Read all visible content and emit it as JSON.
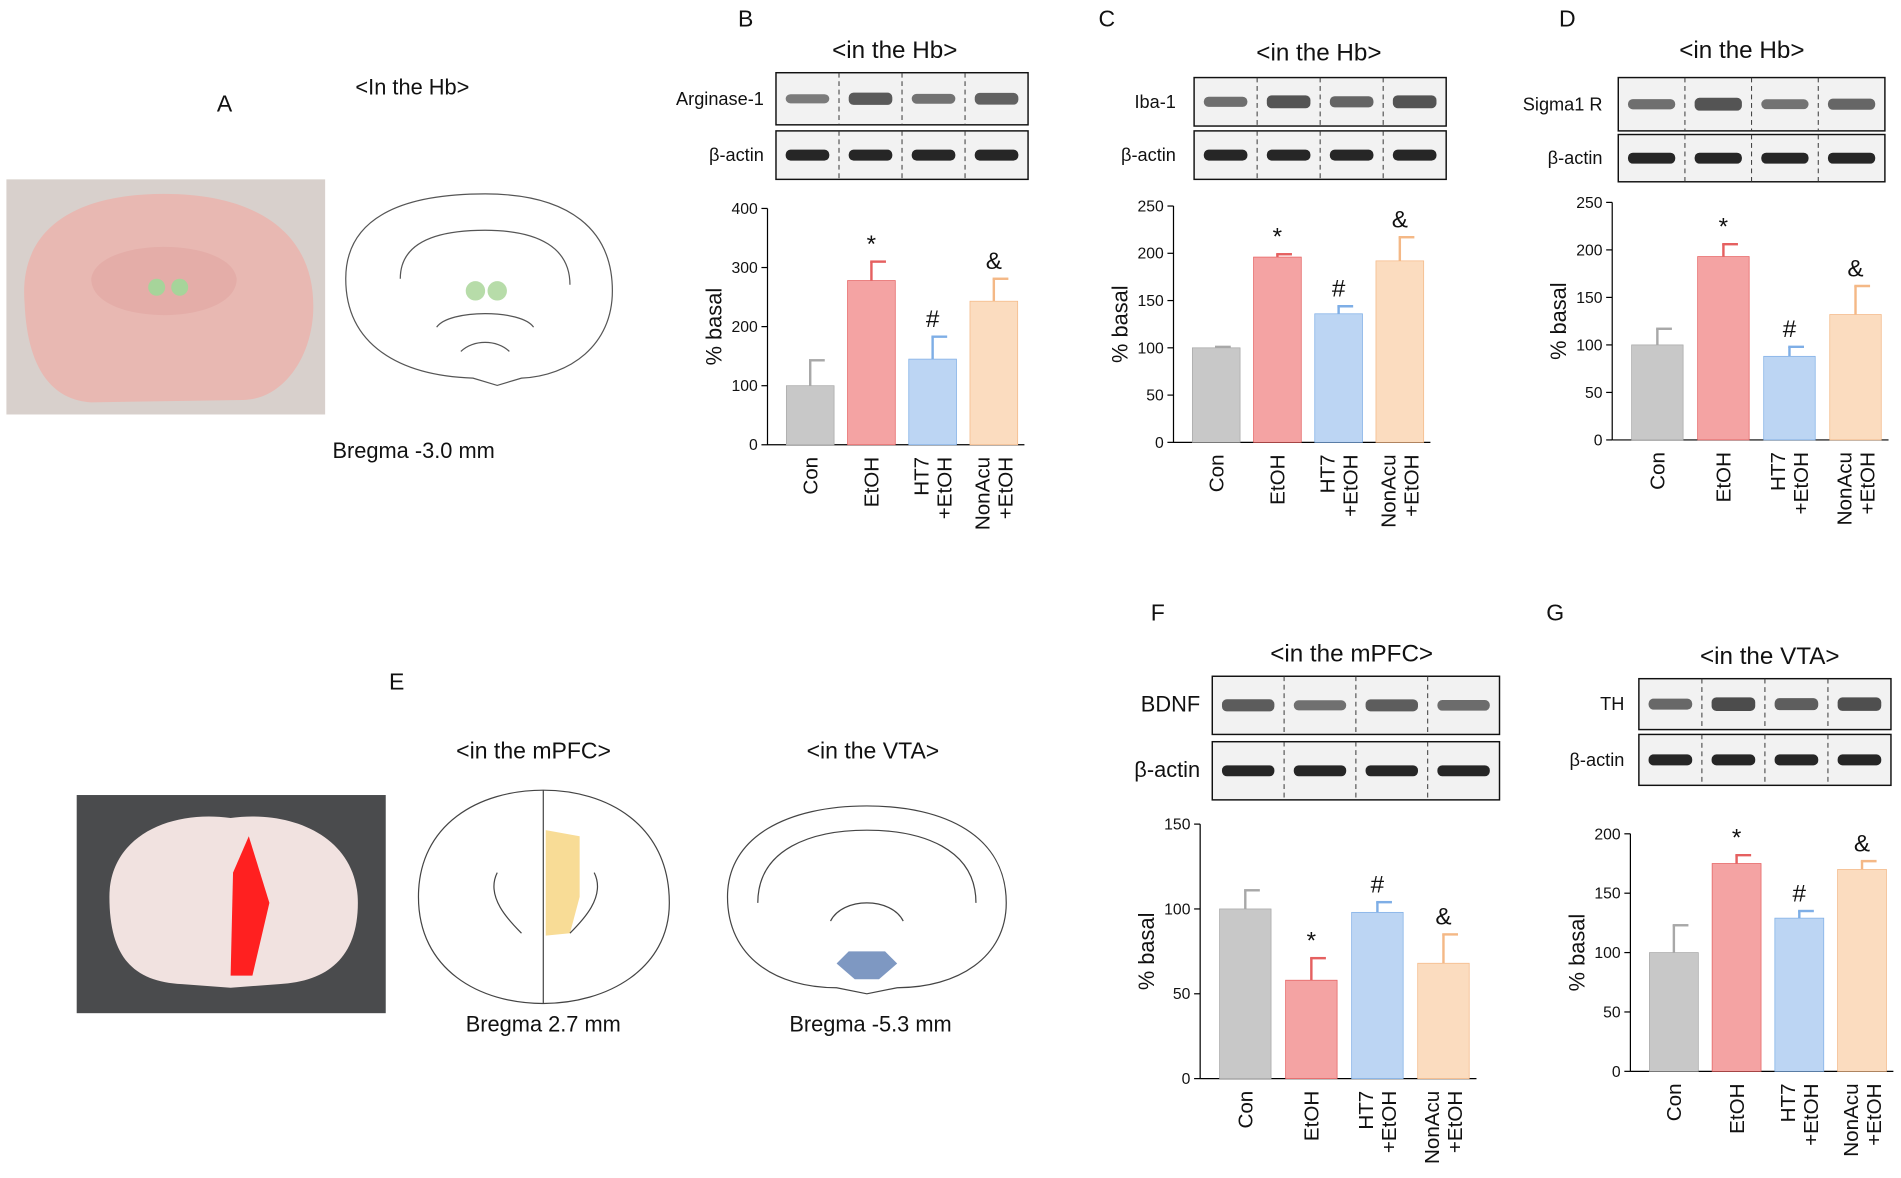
{
  "figure": {
    "panel_a": {
      "label": "A",
      "region": "<In the Hb>",
      "bregma": "Bregma -3.0 mm"
    },
    "panel_e": {
      "label": "E",
      "regions": [
        "<in the mPFC>",
        "<in the VTA>"
      ],
      "bregma": [
        "Bregma 2.7 mm",
        "Bregma -5.3 mm"
      ]
    }
  },
  "chart_data": [
    {
      "type": "bar",
      "panel": "B",
      "title": "<in the Hb>",
      "blots": [
        "Arginase-1",
        "β-actin"
      ],
      "ylabel": "% basal",
      "categories": [
        "Con",
        "EtOH",
        "HT7 +EtOH",
        "NonAcu +EtOH"
      ],
      "values": [
        100,
        278,
        145,
        243
      ],
      "errors": [
        43,
        32,
        38,
        38
      ],
      "annotations": [
        null,
        "*",
        "#",
        "&"
      ],
      "colors": [
        "#c8c8c8",
        "#f4a3a3",
        "#bcd5f3",
        "#fbdcbf"
      ],
      "error_colors": [
        "#a8a8a8",
        "#e56060",
        "#7eaee6",
        "#f4b886"
      ],
      "ylim": [
        0,
        400
      ],
      "yticks": [
        0,
        100,
        200,
        300,
        400
      ]
    },
    {
      "type": "bar",
      "panel": "C",
      "title": "<in the Hb>",
      "blots": [
        "Iba-1",
        "β-actin"
      ],
      "ylabel": "% basal",
      "categories": [
        "Con",
        "EtOH",
        "HT7 +EtOH",
        "NonAcu +EtOH"
      ],
      "values": [
        100,
        196,
        136,
        192
      ],
      "errors": [
        1,
        3,
        8,
        25
      ],
      "annotations": [
        null,
        "*",
        "#",
        "&"
      ],
      "colors": [
        "#c8c8c8",
        "#f4a3a3",
        "#bcd5f3",
        "#fbdcbf"
      ],
      "error_colors": [
        "#a8a8a8",
        "#e56060",
        "#7eaee6",
        "#f4b886"
      ],
      "ylim": [
        0,
        250
      ],
      "yticks": [
        0,
        50,
        100,
        150,
        200,
        250
      ]
    },
    {
      "type": "bar",
      "panel": "D",
      "title": "<in the Hb>",
      "blots": [
        "Sigma1 R",
        "β-actin"
      ],
      "ylabel": "% basal",
      "categories": [
        "Con",
        "EtOH",
        "HT7 +EtOH",
        "NonAcu +EtOH"
      ],
      "values": [
        100,
        193,
        88,
        132
      ],
      "errors": [
        17,
        13,
        10,
        30
      ],
      "annotations": [
        null,
        "*",
        "#",
        "&"
      ],
      "colors": [
        "#c8c8c8",
        "#f4a3a3",
        "#bcd5f3",
        "#fbdcbf"
      ],
      "error_colors": [
        "#a8a8a8",
        "#e56060",
        "#7eaee6",
        "#f4b886"
      ],
      "ylim": [
        0,
        250
      ],
      "yticks": [
        0,
        50,
        100,
        150,
        200,
        250
      ]
    },
    {
      "type": "bar",
      "panel": "F",
      "title": "<in the mPFC>",
      "blots": [
        "BDNF",
        "β-actin"
      ],
      "ylabel": "% basal",
      "categories": [
        "Con",
        "EtOH",
        "HT7 +EtOH",
        "NonAcu +EtOH"
      ],
      "values": [
        100,
        58,
        98,
        68
      ],
      "errors": [
        11,
        13,
        6,
        17
      ],
      "annotations": [
        null,
        "*",
        "#",
        "&"
      ],
      "colors": [
        "#c8c8c8",
        "#f4a3a3",
        "#bcd5f3",
        "#fbdcbf"
      ],
      "error_colors": [
        "#a8a8a8",
        "#e56060",
        "#7eaee6",
        "#f4b886"
      ],
      "ylim": [
        0,
        150
      ],
      "yticks": [
        0,
        50,
        100,
        150
      ]
    },
    {
      "type": "bar",
      "panel": "G",
      "title": "<in the VTA>",
      "blots": [
        "TH",
        "β-actin"
      ],
      "ylabel": "% basal",
      "categories": [
        "Con",
        "EtOH",
        "HT7 +EtOH",
        "NonAcu +EtOH"
      ],
      "values": [
        100,
        175,
        129,
        170
      ],
      "errors": [
        23,
        7,
        6,
        7
      ],
      "annotations": [
        null,
        "*",
        "#",
        "&"
      ],
      "colors": [
        "#c8c8c8",
        "#f4a3a3",
        "#bcd5f3",
        "#fbdcbf"
      ],
      "error_colors": [
        "#a8a8a8",
        "#e56060",
        "#7eaee6",
        "#f4b886"
      ],
      "ylim": [
        0,
        200
      ],
      "yticks": [
        0,
        50,
        100,
        150,
        200
      ]
    }
  ]
}
